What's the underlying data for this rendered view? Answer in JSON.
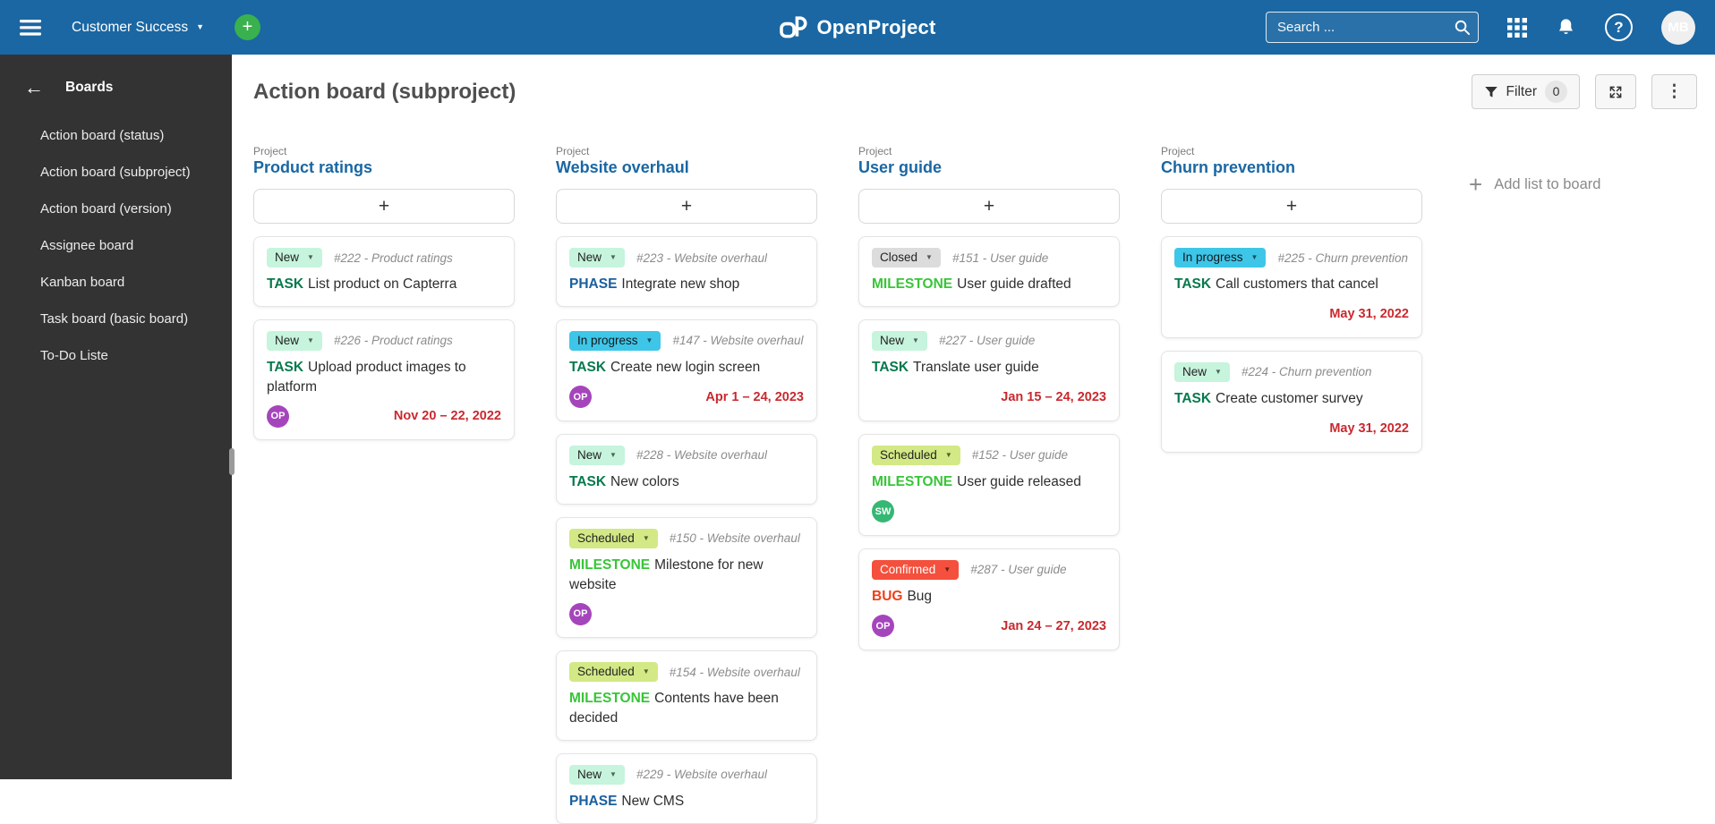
{
  "topbar": {
    "project_selector": "Customer Success",
    "logo": "OpenProject",
    "search_placeholder": "Search ...",
    "avatar_initials": "MB"
  },
  "sidebar": {
    "title": "Boards",
    "items": [
      "Action board (status)",
      "Action board (subproject)",
      "Action board (version)",
      "Assignee board",
      "Kanban board",
      "Task board (basic board)",
      "To-Do Liste"
    ]
  },
  "page": {
    "title": "Action board (subproject)",
    "filter_label": "Filter",
    "filter_count": "0",
    "add_list_label": "Add list to board"
  },
  "icons": {
    "hamburger-menu": "three-bars",
    "global-add": "+",
    "chevron-down": "▼",
    "search": "magnifier",
    "apps-grid": "3x3-dots",
    "notifications": "bell",
    "help": "?",
    "back-arrow": "←",
    "filter": "funnel",
    "fullscreen": "expand-arrows",
    "more": "⋮",
    "add-list-plus": "+",
    "add-card-plus": "+"
  },
  "colors": {
    "topbar_bg": "#1A67A3",
    "sidebar_bg": "#333333",
    "link_blue": "#1A67A3",
    "add_button_green": "#39B14E",
    "due_date_red": "#C9292E",
    "avatar_top_bg": "#C750C9"
  },
  "status_colors": {
    "New": {
      "bg": "#C6F4DC",
      "fg": "#222222"
    },
    "In progress": {
      "bg": "#3EC6E8",
      "fg": "#14171A"
    },
    "Scheduled": {
      "bg": "#D2E985",
      "fg": "#222222"
    },
    "Closed": {
      "bg": "#DCDCDC",
      "fg": "#222222"
    },
    "Confirmed": {
      "bg": "#F4503D",
      "fg": "#FFFFFF"
    }
  },
  "type_colors": {
    "TASK": "#07794C",
    "PHASE": "#1A5E9F",
    "MILESTONE": "#38C538",
    "BUG": "#F23E17"
  },
  "avatar_colors": {
    "OP": "#A545BC",
    "SW": "#35B873"
  },
  "columns": [
    {
      "kicker": "Project",
      "name": "Product ratings",
      "add_card_label": "+",
      "cards": [
        {
          "status": "New",
          "id": "#222",
          "project": "Product ratings",
          "type": "TASK",
          "title": "List product on Capterra"
        },
        {
          "status": "New",
          "id": "#226",
          "project": "Product ratings",
          "type": "TASK",
          "title": "Upload product images to platform",
          "avatar": "OP",
          "date": "Nov 20 – 22, 2022"
        }
      ]
    },
    {
      "kicker": "Project",
      "name": "Website overhaul",
      "add_card_label": "+",
      "cards": [
        {
          "status": "New",
          "id": "#223",
          "project": "Website overhaul",
          "type": "PHASE",
          "title": "Integrate new shop"
        },
        {
          "status": "In progress",
          "id": "#147",
          "project": "Website overhaul",
          "type": "TASK",
          "title": "Create new login screen",
          "avatar": "OP",
          "date": "Apr 1 – 24, 2023"
        },
        {
          "status": "New",
          "id": "#228",
          "project": "Website overhaul",
          "type": "TASK",
          "title": "New colors"
        },
        {
          "status": "Scheduled",
          "id": "#150",
          "project": "Website overhaul",
          "type": "MILESTONE",
          "title": "Milestone for new website",
          "avatar": "OP"
        },
        {
          "status": "Scheduled",
          "id": "#154",
          "project": "Website overhaul",
          "type": "MILESTONE",
          "title": "Contents have been decided"
        },
        {
          "status": "New",
          "id": "#229",
          "project": "Website overhaul",
          "type": "PHASE",
          "title": "New CMS"
        }
      ]
    },
    {
      "kicker": "Project",
      "name": "User guide",
      "add_card_label": "+",
      "cards": [
        {
          "status": "Closed",
          "id": "#151",
          "project": "User guide",
          "type": "MILESTONE",
          "title": "User guide drafted"
        },
        {
          "status": "New",
          "id": "#227",
          "project": "User guide",
          "type": "TASK",
          "title": "Translate user guide",
          "date": "Jan 15 – 24, 2023"
        },
        {
          "status": "Scheduled",
          "id": "#152",
          "project": "User guide",
          "type": "MILESTONE",
          "title": "User guide released",
          "avatar": "SW"
        },
        {
          "status": "Confirmed",
          "id": "#287",
          "project": "User guide",
          "type": "BUG",
          "title": "Bug",
          "avatar": "OP",
          "date": "Jan 24 – 27, 2023"
        }
      ]
    },
    {
      "kicker": "Project",
      "name": "Churn prevention",
      "add_card_label": "+",
      "cards": [
        {
          "status": "In progress",
          "id": "#225",
          "project": "Churn prevention",
          "type": "TASK",
          "title": "Call customers that cancel",
          "date": "May 31, 2022"
        },
        {
          "status": "New",
          "id": "#224",
          "project": "Churn prevention",
          "type": "TASK",
          "title": "Create customer survey",
          "date": "May 31, 2022"
        }
      ]
    }
  ]
}
